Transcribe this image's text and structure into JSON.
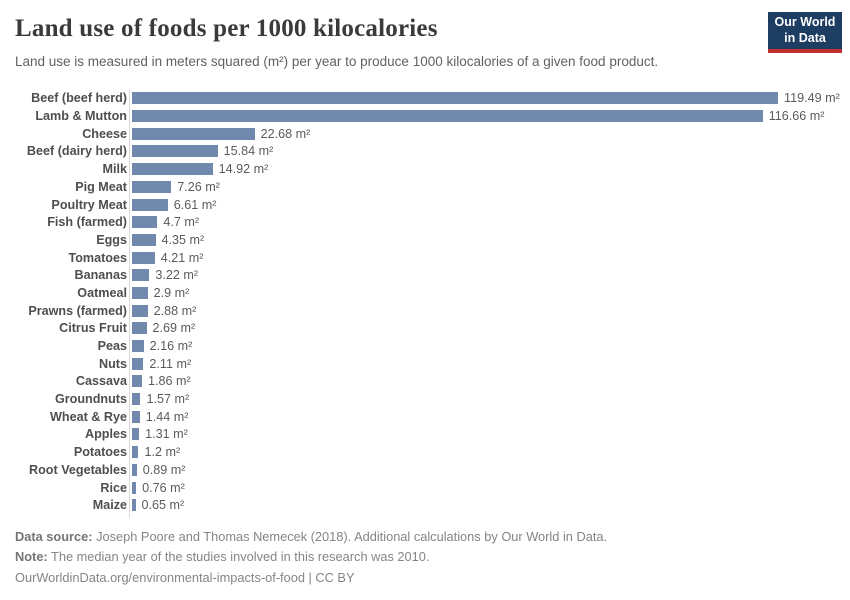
{
  "header": {
    "title": "Land use of foods per 1000 kilocalories",
    "subtitle": "Land use is measured in meters squared (m²) per year to produce 1000 kilocalories of a given food product.",
    "logo": {
      "line1": "Our World",
      "line2": "in Data"
    }
  },
  "chart_data": {
    "type": "bar",
    "orientation": "horizontal",
    "title": "Land use of foods per 1000 kilocalories",
    "unit": "m²",
    "value_suffix": " m²",
    "xlim": [
      0,
      120
    ],
    "grid": false,
    "bar_color": "#7189ad",
    "categories": [
      "Beef (beef herd)",
      "Lamb & Mutton",
      "Cheese",
      "Beef (dairy herd)",
      "Milk",
      "Pig Meat",
      "Poultry Meat",
      "Fish (farmed)",
      "Eggs",
      "Tomatoes",
      "Bananas",
      "Oatmeal",
      "Prawns (farmed)",
      "Citrus Fruit",
      "Peas",
      "Nuts",
      "Cassava",
      "Groundnuts",
      "Wheat & Rye",
      "Apples",
      "Potatoes",
      "Root Vegetables",
      "Rice",
      "Maize"
    ],
    "values": [
      119.49,
      116.66,
      22.68,
      15.84,
      14.92,
      7.26,
      6.61,
      4.7,
      4.35,
      4.21,
      3.22,
      2.9,
      2.88,
      2.69,
      2.16,
      2.11,
      1.86,
      1.57,
      1.44,
      1.31,
      1.2,
      0.89,
      0.76,
      0.65
    ]
  },
  "footer": {
    "data_source_label": "Data source:",
    "data_source_text": " Joseph Poore and Thomas Nemecek (2018). Additional calculations by Our World in Data.",
    "note_label": "Note:",
    "note_text": " The median year of the studies involved in this research was 2010.",
    "url_line": "OurWorldinData.org/environmental-impacts-of-food | CC BY"
  },
  "colors": {
    "bar": "#7189ad",
    "logo_background": "#1d3d63",
    "logo_stripe": "#c2302f",
    "title_text": "#3a3a3a",
    "subtitle_text": "#616161",
    "footer_text": "#858585"
  }
}
